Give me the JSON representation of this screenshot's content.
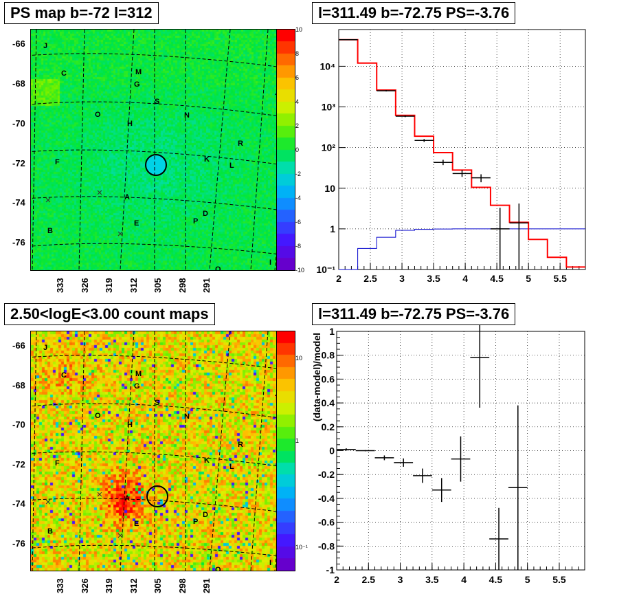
{
  "panels": {
    "ps_map": {
      "title": "PS map b=-72 l=312",
      "y_ticks": [
        "-66",
        "-68",
        "-70",
        "-72",
        "-74",
        "-76"
      ],
      "x_ticks": [
        "333",
        "326",
        "319",
        "312",
        "305",
        "298",
        "291"
      ],
      "palette_ticks": [
        "10",
        "8",
        "6",
        "4",
        "2",
        "0",
        "-2",
        "-4",
        "-6",
        "-8",
        "-10"
      ]
    },
    "count_map": {
      "title": "2.50<logE<3.00 count maps",
      "y_ticks": [
        "-66",
        "-68",
        "-70",
        "-72",
        "-74",
        "-76"
      ],
      "x_ticks": [
        "333",
        "326",
        "319",
        "312",
        "305",
        "298",
        "291"
      ],
      "palette_ticks": [
        "10",
        "1",
        "10⁻¹"
      ]
    },
    "spectrum": {
      "title": "l=311.49 b=-72.75 PS=-3.76"
    },
    "residual": {
      "title": "l=311.49 b=-72.75 PS=-3.76"
    }
  },
  "map_letters": [
    "J",
    "C",
    "M",
    "G",
    "S",
    "N",
    "T",
    "O",
    "H",
    "R",
    "F",
    "K",
    "L",
    "A",
    "D",
    "P",
    "B",
    "E",
    "Q",
    "I"
  ],
  "chart_data": [
    {
      "type": "heatmap",
      "name": "ps_map",
      "title": "PS map b=-72 l=312",
      "ylabel_ticks": [
        -66,
        -68,
        -70,
        -72,
        -74,
        -76
      ],
      "xlabel_ticks": [
        333,
        326,
        319,
        312,
        305,
        298,
        291
      ],
      "zlim": [
        -10,
        10
      ]
    },
    {
      "type": "heatmap",
      "name": "count_map",
      "title": "2.50<logE<3.00 count maps",
      "zscale": "log",
      "zlim": [
        0.03,
        20
      ]
    },
    {
      "type": "line",
      "name": "spectrum",
      "title": "l=311.49 b=-72.75 PS=-3.76",
      "yscale": "log",
      "xlim": [
        2,
        5.9
      ],
      "ylim": [
        0.1,
        80000
      ],
      "x_ticks": [
        "2",
        "2.5",
        "3",
        "3.5",
        "4",
        "4.5",
        "5",
        "5.5"
      ],
      "y_ticks": [
        {
          "v": 0.1,
          "label": "10⁻¹"
        },
        {
          "v": 1,
          "label": "1"
        },
        {
          "v": 10,
          "label": "10"
        },
        {
          "v": 100,
          "label": "10²"
        },
        {
          "v": 1000,
          "label": "10³"
        },
        {
          "v": 10000,
          "label": "10⁴"
        }
      ],
      "model_red": {
        "edges": [
          2,
          2.3,
          2.6,
          2.9,
          3.2,
          3.5,
          3.8,
          4.1,
          4.4,
          4.7,
          5.0,
          5.3,
          5.6,
          5.9
        ],
        "values": [
          45000,
          12000,
          2600,
          620,
          190,
          75,
          28,
          10.5,
          3.8,
          1.45,
          0.55,
          0.2,
          0.115
        ]
      },
      "model_blue": {
        "edges": [
          2,
          2.3,
          2.6,
          2.9,
          3.2,
          3.5,
          3.8,
          4.1,
          4.4,
          4.7,
          5.0,
          5.3,
          5.6,
          5.9
        ],
        "values": [
          0.1,
          0.33,
          0.62,
          0.92,
          0.97,
          0.99,
          1.0,
          1.0,
          1.0,
          1.0,
          1.0,
          1.0,
          1.0
        ]
      },
      "data_points": [
        {
          "x": 2.15,
          "y": 45000,
          "xerr": 0.15,
          "ylo": 44000,
          "yhi": 46000
        },
        {
          "x": 2.75,
          "y": 2500,
          "xerr": 0.15,
          "ylo": 2400,
          "yhi": 2600
        },
        {
          "x": 3.05,
          "y": 590,
          "xerr": 0.15,
          "ylo": 560,
          "yhi": 620
        },
        {
          "x": 3.35,
          "y": 150,
          "xerr": 0.15,
          "ylo": 138,
          "yhi": 162
        },
        {
          "x": 3.65,
          "y": 43,
          "xerr": 0.15,
          "ylo": 37,
          "yhi": 50
        },
        {
          "x": 3.95,
          "y": 23,
          "xerr": 0.15,
          "ylo": 19,
          "yhi": 28
        },
        {
          "x": 4.25,
          "y": 18,
          "xerr": 0.15,
          "ylo": 14,
          "yhi": 22
        },
        {
          "x": 4.55,
          "y": 1,
          "xerr": 0.15,
          "ylo": 0.1,
          "yhi": 3.3
        },
        {
          "x": 4.85,
          "y": 1.4,
          "xerr": 0.15,
          "ylo": 0.1,
          "yhi": 4.2
        }
      ]
    },
    {
      "type": "scatter",
      "name": "residual",
      "title": "l=311.49 b=-72.75 PS=-3.76",
      "ylabel": "(data-model)/model",
      "xlim": [
        2,
        5.9
      ],
      "ylim": [
        -1,
        1
      ],
      "x_ticks": [
        "2",
        "2.5",
        "3",
        "3.5",
        "4",
        "4.5",
        "5",
        "5.5"
      ],
      "y_ticks": [
        "-1",
        "-0.8",
        "-0.6",
        "-0.4",
        "-0.2",
        "0",
        "0.2",
        "0.4",
        "0.6",
        "0.8",
        "1"
      ],
      "points": [
        {
          "x": 2.15,
          "y": 0.01,
          "xerr": 0.15,
          "yerr": 0.01
        },
        {
          "x": 2.45,
          "y": 0.0,
          "xerr": 0.15,
          "yerr": 0.005
        },
        {
          "x": 2.75,
          "y": -0.06,
          "xerr": 0.15,
          "yerr": 0.02
        },
        {
          "x": 3.05,
          "y": -0.1,
          "xerr": 0.15,
          "yerr": 0.035
        },
        {
          "x": 3.35,
          "y": -0.21,
          "xerr": 0.15,
          "yerr": 0.06
        },
        {
          "x": 3.65,
          "y": -0.33,
          "xerr": 0.15,
          "yerr": 0.1
        },
        {
          "x": 3.95,
          "y": -0.07,
          "xerr": 0.15,
          "yerr": 0.19
        },
        {
          "x": 4.25,
          "y": 0.78,
          "xerr": 0.15,
          "yerr": 0.42
        },
        {
          "x": 4.55,
          "y": -0.74,
          "xerr": 0.15,
          "yerr": 0.26
        },
        {
          "x": 4.85,
          "y": -0.31,
          "xerr": 0.15,
          "yerr": 0.69
        }
      ]
    }
  ]
}
